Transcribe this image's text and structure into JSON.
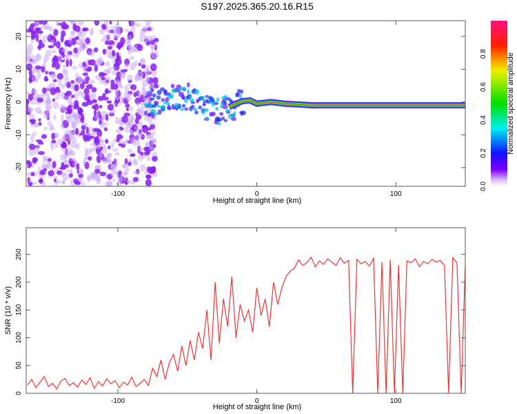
{
  "title": "S197.2025.365.20.16.R15",
  "colors": {
    "snr_line": "#f03030",
    "frame": "#555555"
  },
  "chart_data": [
    {
      "type": "heatmap",
      "title": "S197.2025.365.20.16.R15",
      "xlabel": "Height of straight line (km)",
      "ylabel": "Frequency (Hz)",
      "xlim": [
        -166,
        150
      ],
      "ylim": [
        -25.7,
        24.8
      ],
      "xticks": [
        -100,
        0,
        100
      ],
      "yticks": [
        -20,
        -10,
        0,
        10,
        20
      ],
      "colorbar": {
        "label": "Normalized spectral amplitude",
        "range": [
          0,
          1
        ],
        "ticks": [
          "0.0",
          "0.2",
          "0.4",
          "0.6",
          "0.8"
        ]
      },
      "ridge": {
        "x": [
          -80,
          -70,
          -60,
          -50,
          -45,
          -40,
          -35,
          -30,
          -25,
          -20,
          -15,
          -10,
          -5,
          0,
          10,
          20,
          40,
          80,
          100,
          150
        ],
        "freq": [
          -1,
          0.5,
          1,
          1.5,
          0,
          -1.5,
          -2.5,
          -3,
          -2.5,
          -1.5,
          -0.5,
          0.3,
          0.5,
          -0.5,
          0,
          -0.5,
          -1,
          -1,
          -1,
          -1
        ]
      },
      "noise_region_x": [
        -166,
        -80
      ]
    },
    {
      "type": "line",
      "xlabel": "Height of straight line (km)",
      "ylabel": "SNR (10 * v/v)",
      "xlim": [
        -166,
        150
      ],
      "ylim": [
        0,
        298
      ],
      "xticks": [
        -100,
        0,
        100
      ],
      "yticks": [
        0,
        50,
        100,
        150,
        200,
        250
      ],
      "series": [
        {
          "name": "SNR",
          "x_start": -165,
          "x_step": 3,
          "values": [
            15,
            25,
            10,
            20,
            30,
            12,
            18,
            8,
            22,
            27,
            14,
            19,
            11,
            24,
            16,
            28,
            9,
            21,
            13,
            26,
            17,
            23,
            10,
            20,
            15,
            29,
            12,
            18,
            25,
            14,
            45,
            30,
            60,
            25,
            55,
            70,
            40,
            85,
            50,
            95,
            60,
            110,
            80,
            150,
            60,
            200,
            90,
            170,
            120,
            210,
            100,
            160,
            130,
            150,
            110,
            190,
            140,
            170,
            120,
            200,
            160,
            190,
            210,
            220,
            225,
            240,
            230,
            235,
            245,
            228,
            238,
            232,
            242,
            236,
            230,
            244,
            234,
            239,
            0,
            241,
            233,
            237,
            229,
            243,
            0,
            236,
            0,
            240,
            0,
            231,
            0,
            238,
            235,
            242,
            228,
            237,
            233,
            241,
            236,
            239,
            230,
            0,
            244,
            235,
            0,
            232
          ]
        }
      ]
    }
  ]
}
